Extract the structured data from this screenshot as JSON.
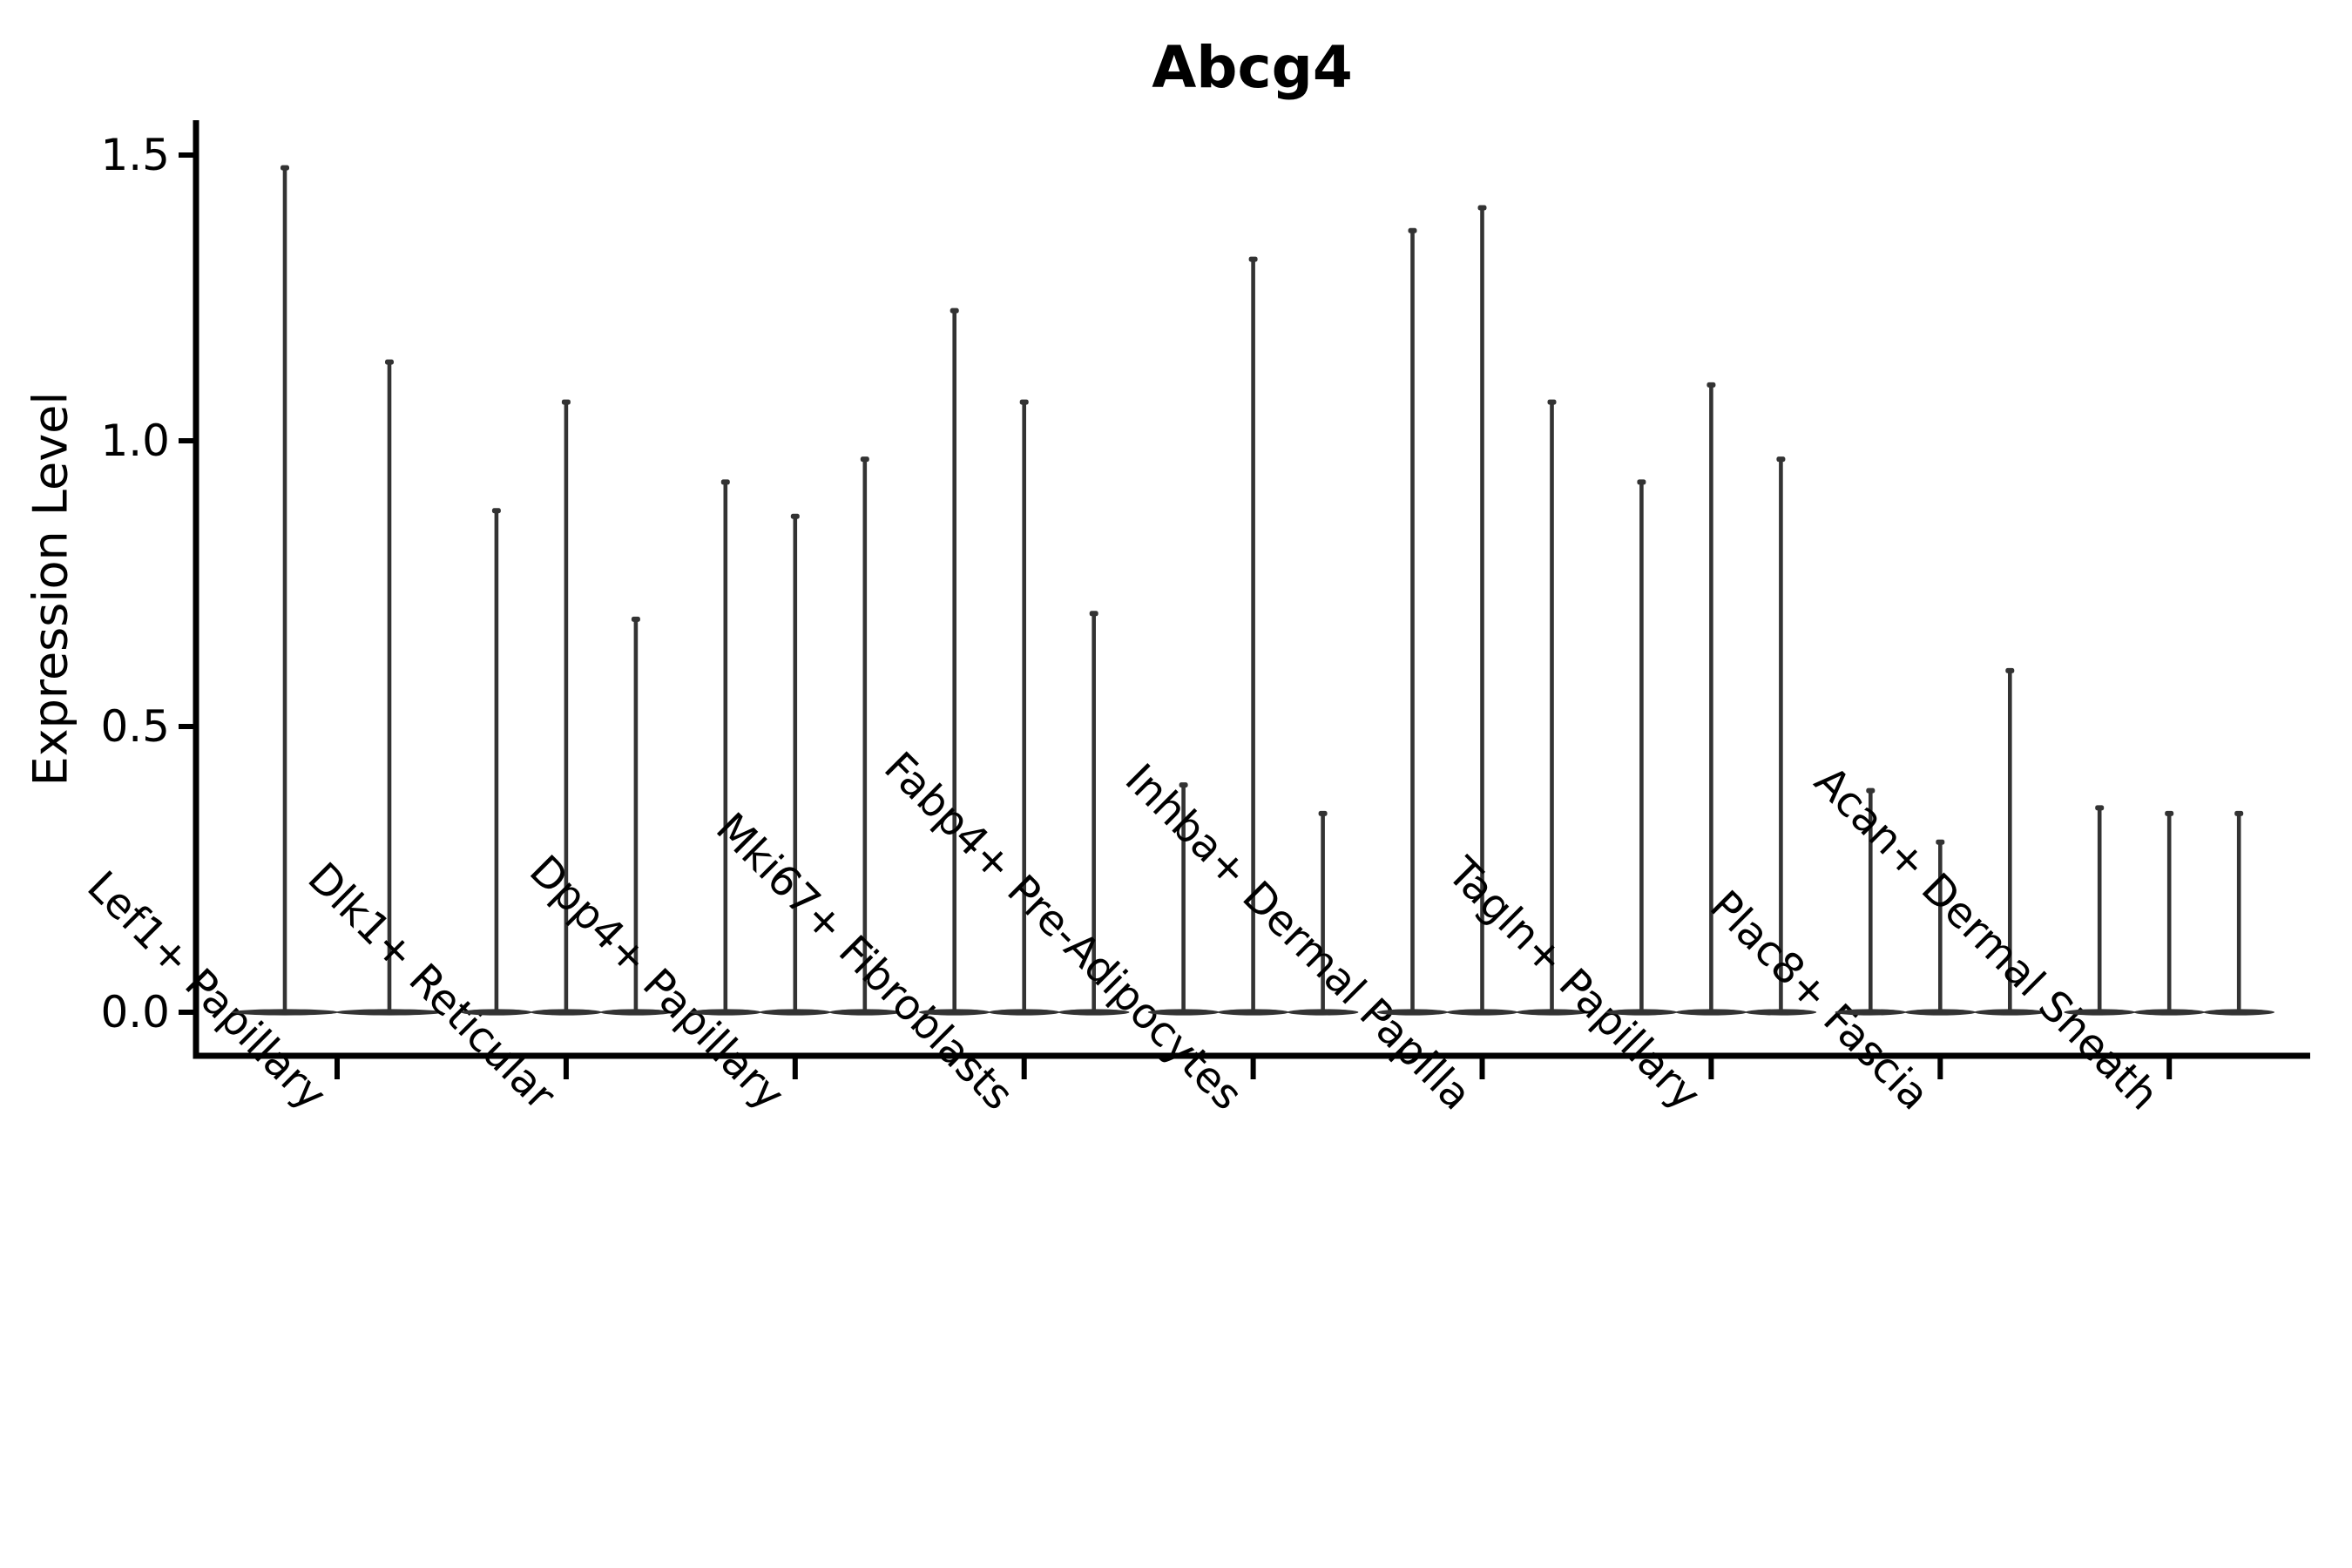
{
  "figure": {
    "title": "Abcg4",
    "y_axis_label": "Expression Level"
  },
  "chart_data": {
    "type": "violin",
    "title": "Abcg4",
    "subtitle": "",
    "xlabel": "",
    "ylabel": "Expression Level",
    "legend_position": "none",
    "grid": false,
    "background_color": "#ffffff",
    "violin_color": "#333333",
    "axis_color": "#000000",
    "tick_label_rotation_deg": 45,
    "ylim": [
      0,
      1.56
    ],
    "ytick_values": [
      0.0,
      0.5,
      1.0,
      1.5
    ],
    "ytick_labels": [
      "0.0",
      "0.5",
      "1.0",
      "1.5"
    ],
    "categories": [
      "Lef1+ Papillary",
      "Dlk1+ Reticular",
      "Dpp4+ Papillary",
      "Mki67+ Fibroblasts",
      "Fabp4+ Pre-Adipocytes",
      "Inhba+ Dermal Papilla",
      "Tagln+ Papillary",
      "Plac8+ Fascia",
      "Acan+ Dermal Sheath"
    ],
    "series_note": "Each category shows narrow spike-shaped violins (expression concentrated at 0 with a thin tail). Values are the maximum expression level reached by each violin spike, left to right within the group.",
    "series": [
      {
        "category": "Lef1+ Papillary",
        "violin_maxima": [
          1.48,
          1.14
        ]
      },
      {
        "category": "Dlk1+ Reticular",
        "violin_maxima": [
          0.88,
          1.07,
          0.69
        ]
      },
      {
        "category": "Dpp4+ Papillary",
        "violin_maxima": [
          0.93,
          0.87,
          0.97
        ]
      },
      {
        "category": "Mki67+ Fibroblasts",
        "violin_maxima": [
          1.23,
          1.07,
          0.7
        ]
      },
      {
        "category": "Fabp4+ Pre-Adipocytes",
        "violin_maxima": [
          0.4,
          1.32,
          0.35
        ]
      },
      {
        "category": "Inhba+ Dermal Papilla",
        "violin_maxima": [
          1.37,
          1.41,
          1.07
        ]
      },
      {
        "category": "Tagln+ Papillary",
        "violin_maxima": [
          0.93,
          1.1,
          0.97
        ]
      },
      {
        "category": "Plac8+ Fascia",
        "violin_maxima": [
          0.39,
          0.3,
          0.6
        ]
      },
      {
        "category": "Acan+ Dermal Sheath",
        "violin_maxima": [
          0.36,
          0.35,
          0.35
        ]
      }
    ]
  }
}
